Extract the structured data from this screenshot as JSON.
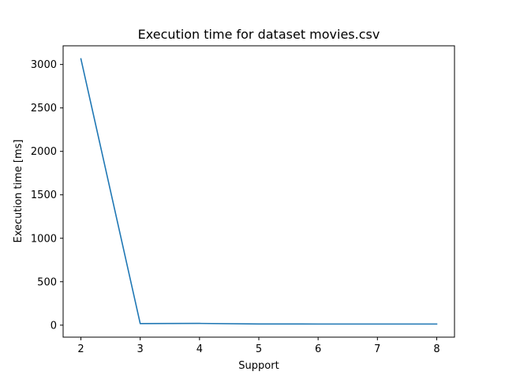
{
  "chart_data": {
    "type": "line",
    "title": "Execution time for dataset movies.csv",
    "xlabel": "Support",
    "ylabel": "Execution time [ms]",
    "xlim": [
      1.7,
      8.3
    ],
    "ylim": [
      -138,
      3215
    ],
    "x_ticks": [
      2,
      3,
      4,
      5,
      6,
      7,
      8
    ],
    "y_ticks": [
      0,
      500,
      1000,
      1500,
      2000,
      2500,
      3000
    ],
    "grid": false,
    "series": [
      {
        "color": "#1f77b4",
        "x": [
          2,
          3,
          4,
          5,
          6,
          7,
          8
        ],
        "y": [
          3065,
          18,
          20,
          14,
          13,
          13,
          13
        ]
      }
    ]
  }
}
